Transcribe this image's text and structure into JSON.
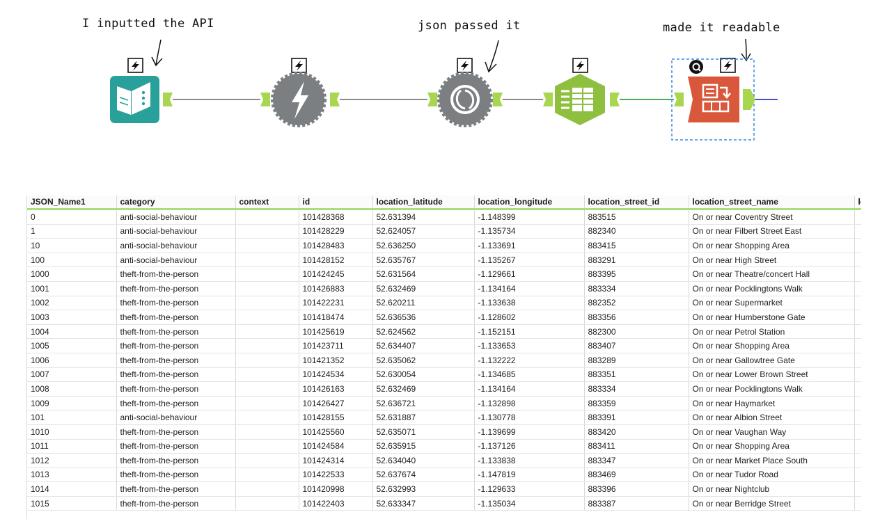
{
  "annotations": {
    "input": "I inputted the API",
    "json": "json passed it",
    "readable": "made it readable"
  },
  "workflow": {
    "tools": [
      {
        "name": "input-tool",
        "color": "#2aa09a"
      },
      {
        "name": "download-tool",
        "color": "#7b7f82"
      },
      {
        "name": "json-parse-tool",
        "color": "#7b7f82"
      },
      {
        "name": "text-to-columns-tool",
        "color": "#8fbf3f"
      },
      {
        "name": "cross-tab-tool",
        "color": "#d9583b"
      }
    ],
    "connector_color": "#a8d650",
    "link_gray": "#8a8a8a",
    "link_green": "#4caa4f",
    "link_blue": "#4b4bdb",
    "selection_color": "#3a8ae0"
  },
  "grid": {
    "columns": [
      "JSON_Name1",
      "category",
      "context",
      "id",
      "location_latitude",
      "location_longitude",
      "location_street_id",
      "location_street_name",
      "lo"
    ],
    "rows": [
      [
        "0",
        "anti-social-behaviour",
        "",
        "101428368",
        "52.631394",
        "-1.148399",
        "883515",
        "On or near Coventry Street",
        ""
      ],
      [
        "1",
        "anti-social-behaviour",
        "",
        "101428229",
        "52.624057",
        "-1.135734",
        "882340",
        "On or near Filbert Street East",
        ""
      ],
      [
        "10",
        "anti-social-behaviour",
        "",
        "101428483",
        "52.636250",
        "-1.133691",
        "883415",
        "On or near Shopping Area",
        ""
      ],
      [
        "100",
        "anti-social-behaviour",
        "",
        "101428152",
        "52.635767",
        "-1.135267",
        "883291",
        "On or near High Street",
        ""
      ],
      [
        "1000",
        "theft-from-the-person",
        "",
        "101424245",
        "52.631564",
        "-1.129661",
        "883395",
        "On or near Theatre/concert Hall",
        ""
      ],
      [
        "1001",
        "theft-from-the-person",
        "",
        "101426883",
        "52.632469",
        "-1.134164",
        "883334",
        "On or near Pocklingtons Walk",
        ""
      ],
      [
        "1002",
        "theft-from-the-person",
        "",
        "101422231",
        "52.620211",
        "-1.133638",
        "882352",
        "On or near Supermarket",
        ""
      ],
      [
        "1003",
        "theft-from-the-person",
        "",
        "101418474",
        "52.636536",
        "-1.128602",
        "883356",
        "On or near Humberstone Gate",
        ""
      ],
      [
        "1004",
        "theft-from-the-person",
        "",
        "101425619",
        "52.624562",
        "-1.152151",
        "882300",
        "On or near Petrol Station",
        ""
      ],
      [
        "1005",
        "theft-from-the-person",
        "",
        "101423711",
        "52.634407",
        "-1.133653",
        "883407",
        "On or near Shopping Area",
        ""
      ],
      [
        "1006",
        "theft-from-the-person",
        "",
        "101421352",
        "52.635062",
        "-1.132222",
        "883289",
        "On or near Gallowtree Gate",
        ""
      ],
      [
        "1007",
        "theft-from-the-person",
        "",
        "101424534",
        "52.630054",
        "-1.134685",
        "883351",
        "On or near Lower Brown Street",
        ""
      ],
      [
        "1008",
        "theft-from-the-person",
        "",
        "101426163",
        "52.632469",
        "-1.134164",
        "883334",
        "On or near Pocklingtons Walk",
        ""
      ],
      [
        "1009",
        "theft-from-the-person",
        "",
        "101426427",
        "52.636721",
        "-1.132898",
        "883359",
        "On or near Haymarket",
        ""
      ],
      [
        "101",
        "anti-social-behaviour",
        "",
        "101428155",
        "52.631887",
        "-1.130778",
        "883391",
        "On or near Albion Street",
        ""
      ],
      [
        "1010",
        "theft-from-the-person",
        "",
        "101425560",
        "52.635071",
        "-1.139699",
        "883420",
        "On or near Vaughan Way",
        ""
      ],
      [
        "1011",
        "theft-from-the-person",
        "",
        "101424584",
        "52.635915",
        "-1.137126",
        "883411",
        "On or near Shopping Area",
        ""
      ],
      [
        "1012",
        "theft-from-the-person",
        "",
        "101424314",
        "52.634040",
        "-1.133838",
        "883347",
        "On or near Market Place South",
        ""
      ],
      [
        "1013",
        "theft-from-the-person",
        "",
        "101422533",
        "52.637674",
        "-1.147819",
        "883469",
        "On or near Tudor Road",
        ""
      ],
      [
        "1014",
        "theft-from-the-person",
        "",
        "101420998",
        "52.632993",
        "-1.129633",
        "883396",
        "On or near Nightclub",
        ""
      ],
      [
        "1015",
        "theft-from-the-person",
        "",
        "101422403",
        "52.633347",
        "-1.135034",
        "883387",
        "On or near Berridge Street",
        ""
      ]
    ]
  }
}
